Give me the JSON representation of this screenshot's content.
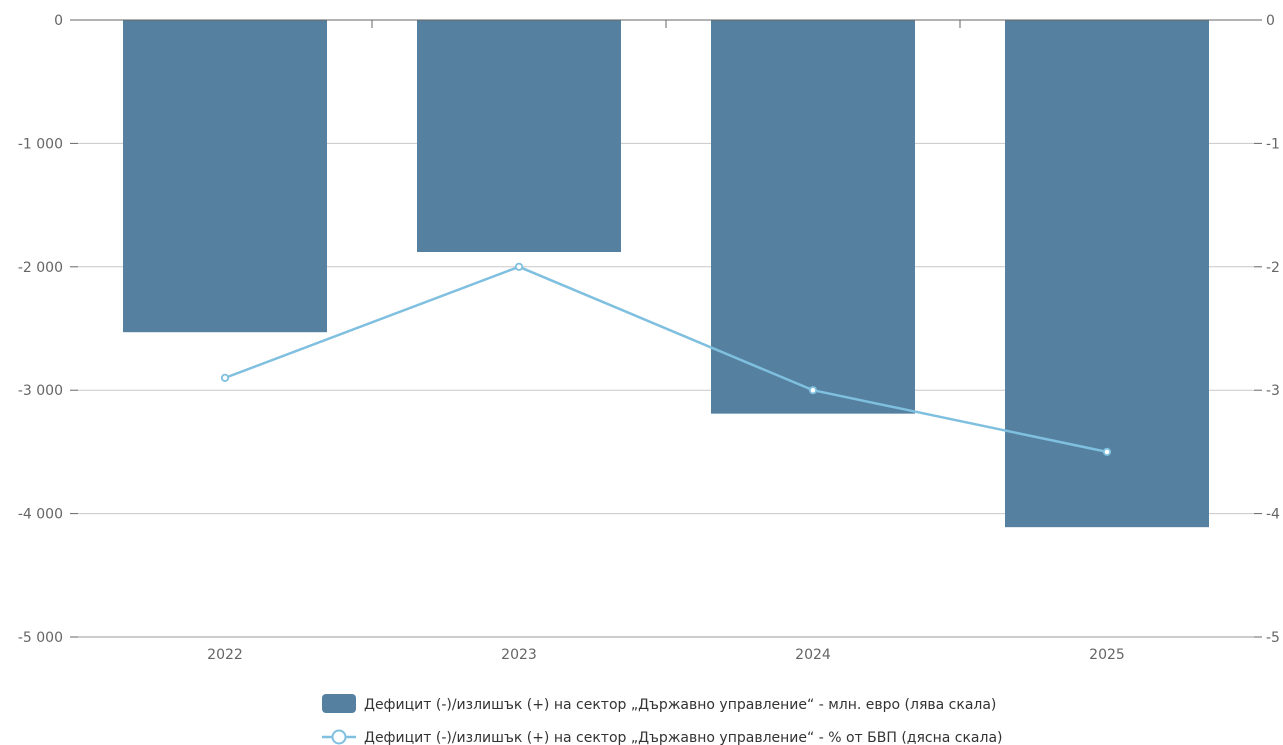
{
  "chart_data": {
    "type": "bar",
    "categories": [
      "2022",
      "2023",
      "2024",
      "2025"
    ],
    "series": [
      {
        "name": "Дефицит (-)/излишък (+) на сектор „Държавно управление“ - млн. евро (лява скала)",
        "type": "bar",
        "axis": "left",
        "values": [
          -2530,
          -1880,
          -3190,
          -4110
        ],
        "color": "#55809f"
      },
      {
        "name": "Дефицит (-)/излишък (+) на сектор „Държавно управление“ - % от БВП (дясна скала)",
        "type": "line",
        "axis": "right",
        "values": [
          -2.9,
          -2.0,
          -3.0,
          -3.5
        ],
        "color": "#7fbfdf"
      }
    ],
    "y_left": {
      "ylim": [
        -5000,
        0
      ],
      "ticks": [
        0,
        -1000,
        -2000,
        -3000,
        -4000,
        -5000
      ],
      "tick_labels": [
        "0",
        "-1 000",
        "-2 000",
        "-3 000",
        "-4 000",
        "-5 000"
      ]
    },
    "y_right": {
      "ylim": [
        -5,
        0
      ],
      "ticks": [
        0,
        -1,
        -2,
        -3,
        -4,
        -5
      ],
      "tick_labels": [
        "0",
        "-1",
        "-2",
        "-3",
        "-4",
        "-5"
      ]
    },
    "grid": true,
    "legend_position": "bottom"
  }
}
